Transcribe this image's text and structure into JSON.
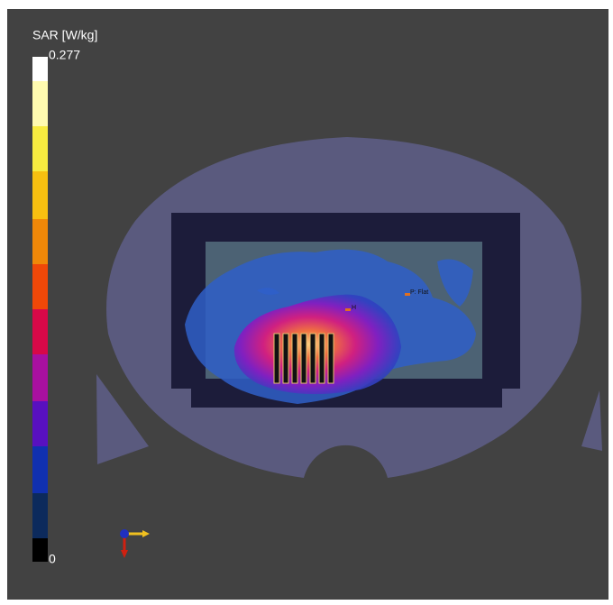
{
  "colorbar": {
    "title": "SAR [W/kg]",
    "max": 0.277,
    "min": 0
  },
  "annotations": [
    "H",
    "P: Flat"
  ]
}
